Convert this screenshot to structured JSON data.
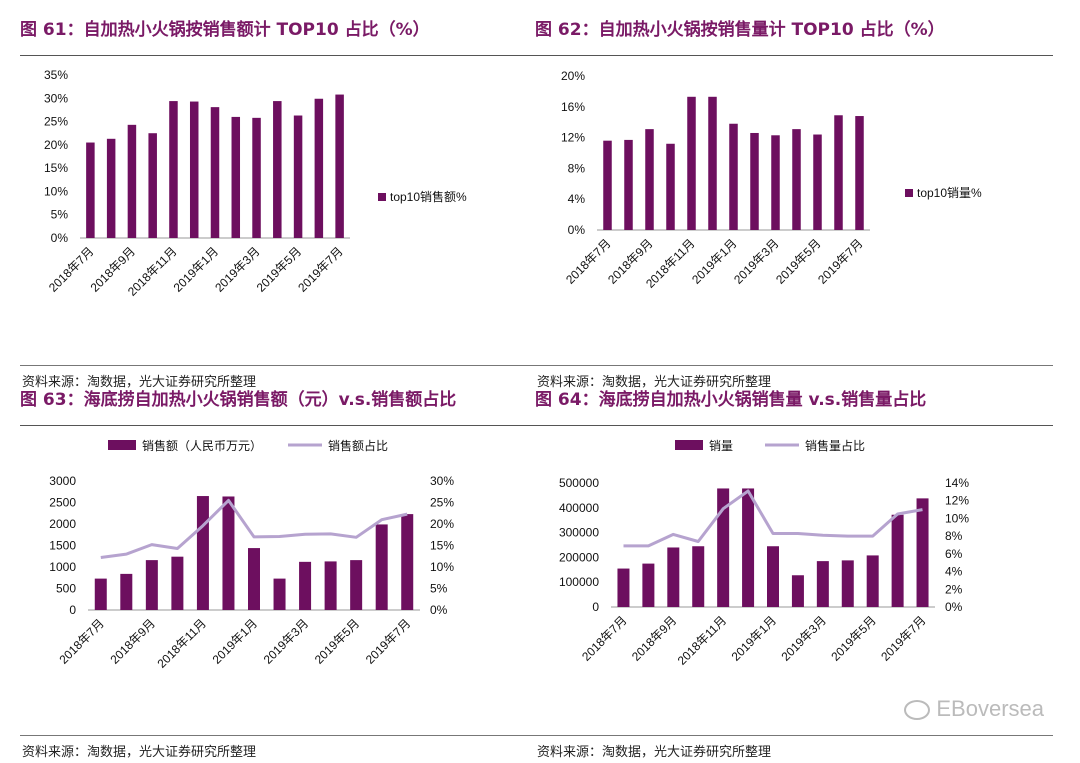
{
  "colors": {
    "bar": "#6d0f5f",
    "line": "#b6a3cf",
    "title": "#7a1a66"
  },
  "source_text": "资料来源：淘数据，光大证券研究所整理",
  "watermark": "EBoversea",
  "chart_data": [
    {
      "type": "bar",
      "title": "图 61：自加热小火锅按销售额计 TOP10 占比（%）",
      "categories": [
        "2018年7月",
        "2018年8月",
        "2018年9月",
        "2018年10月",
        "2018年11月",
        "2018年12月",
        "2019年1月",
        "2019年2月",
        "2019年3月",
        "2019年4月",
        "2019年5月",
        "2019年6月",
        "2019年7月"
      ],
      "x_tick_labels": [
        "2018年7月",
        "",
        "2018年9月",
        "",
        "2018年11月",
        "",
        "2019年1月",
        "",
        "2019年3月",
        "",
        "2019年5月",
        "",
        "2019年7月"
      ],
      "series": [
        {
          "name": "top10销售额%",
          "values": [
            20.5,
            21.3,
            24.3,
            22.5,
            29.4,
            29.3,
            28.1,
            26.0,
            25.8,
            29.4,
            26.3,
            29.9,
            30.8
          ]
        }
      ],
      "ylim": [
        0,
        35
      ],
      "yticks": [
        "0%",
        "5%",
        "10%",
        "15%",
        "20%",
        "25%",
        "30%",
        "35%"
      ],
      "legend_position": "right"
    },
    {
      "type": "bar",
      "title": "图 62：自加热小火锅按销售量计 TOP10 占比（%）",
      "categories": [
        "2018年7月",
        "2018年8月",
        "2018年9月",
        "2018年10月",
        "2018年11月",
        "2018年12月",
        "2019年1月",
        "2019年2月",
        "2019年3月",
        "2019年4月",
        "2019年5月",
        "2019年6月",
        "2019年7月"
      ],
      "x_tick_labels": [
        "2018年7月",
        "",
        "2018年9月",
        "",
        "2018年11月",
        "",
        "2019年1月",
        "",
        "2019年3月",
        "",
        "2019年5月",
        "",
        "2019年7月"
      ],
      "series": [
        {
          "name": "top10销量%",
          "values": [
            11.6,
            11.7,
            13.1,
            11.2,
            17.3,
            17.3,
            13.8,
            12.6,
            12.3,
            13.1,
            12.4,
            14.9,
            14.8
          ]
        }
      ],
      "ylim": [
        0,
        20
      ],
      "yticks": [
        "0%",
        "4%",
        "8%",
        "12%",
        "16%",
        "20%"
      ],
      "legend_position": "right"
    },
    {
      "type": "bar+line",
      "title": "图 63：海底捞自加热小火锅销售额（元）v.s.销售额占比",
      "categories": [
        "2018年7月",
        "2018年8月",
        "2018年9月",
        "2018年10月",
        "2018年11月",
        "2018年12月",
        "2019年1月",
        "2019年2月",
        "2019年3月",
        "2019年4月",
        "2019年5月",
        "2019年6月",
        "2019年7月"
      ],
      "x_tick_labels": [
        "2018年7月",
        "",
        "2018年9月",
        "",
        "2018年11月",
        "",
        "2019年1月",
        "",
        "2019年3月",
        "",
        "2019年5月",
        "",
        "2019年7月"
      ],
      "series": [
        {
          "name": "销售额（人民币万元）",
          "axis": "left",
          "kind": "bar",
          "values": [
            730,
            840,
            1160,
            1240,
            2650,
            2640,
            1440,
            730,
            1120,
            1130,
            1160,
            1990,
            2230
          ]
        },
        {
          "name": "销售额占比",
          "axis": "right",
          "kind": "line",
          "values": [
            12.2,
            13.0,
            15.2,
            14.3,
            19.6,
            25.5,
            17.0,
            17.1,
            17.6,
            17.7,
            16.9,
            21.0,
            22.3
          ]
        }
      ],
      "ylim_left": [
        0,
        3000
      ],
      "ylim_right": [
        0,
        30
      ],
      "yticks_left": [
        "0",
        "500",
        "1000",
        "1500",
        "2000",
        "2500",
        "3000"
      ],
      "yticks_right": [
        "0%",
        "5%",
        "10%",
        "15%",
        "20%",
        "25%",
        "30%"
      ],
      "legend_position": "top"
    },
    {
      "type": "bar+line",
      "title": "图 64：海底捞自加热小火锅销售量 v.s.销售量占比",
      "categories": [
        "2018年7月",
        "2018年8月",
        "2018年9月",
        "2018年10月",
        "2018年11月",
        "2018年12月",
        "2019年1月",
        "2019年2月",
        "2019年3月",
        "2019年4月",
        "2019年5月",
        "2019年6月",
        "2019年7月"
      ],
      "x_tick_labels": [
        "2018年7月",
        "",
        "2018年9月",
        "",
        "2018年11月",
        "",
        "2019年1月",
        "",
        "2019年3月",
        "",
        "2019年5月",
        "",
        "2019年7月"
      ],
      "series": [
        {
          "name": "销量",
          "axis": "left",
          "kind": "bar",
          "values": [
            155000,
            175000,
            240000,
            245000,
            478000,
            478000,
            245000,
            128000,
            185000,
            188000,
            208000,
            372000,
            438000
          ]
        },
        {
          "name": "销售量占比",
          "axis": "right",
          "kind": "line",
          "values": [
            6.9,
            6.9,
            8.2,
            7.4,
            11.1,
            13.1,
            8.3,
            8.3,
            8.1,
            8.0,
            8.0,
            10.5,
            11.0
          ]
        }
      ],
      "ylim_left": [
        0,
        500000
      ],
      "ylim_right": [
        0,
        14
      ],
      "yticks_left": [
        "0",
        "100000",
        "200000",
        "300000",
        "400000",
        "500000"
      ],
      "yticks_right": [
        "0%",
        "2%",
        "4%",
        "6%",
        "8%",
        "10%",
        "12%",
        "14%"
      ],
      "legend_position": "top"
    }
  ]
}
